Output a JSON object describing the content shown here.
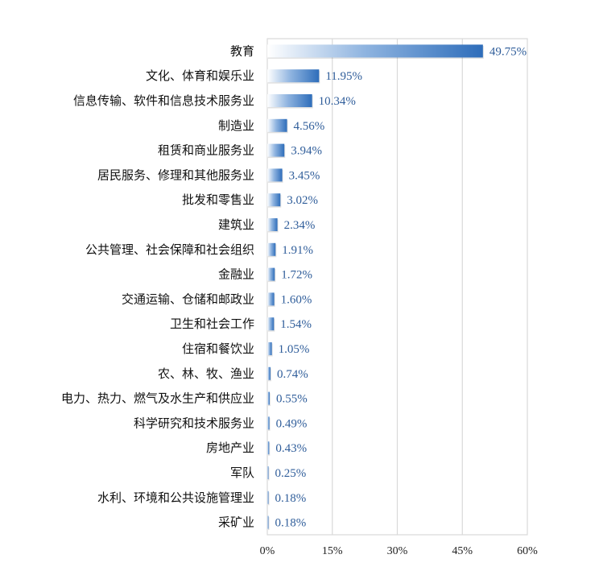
{
  "chart_data": {
    "type": "bar",
    "orientation": "horizontal",
    "categories": [
      "教育",
      "文化、体育和娱乐业",
      "信息传输、软件和信息技术服务业",
      "制造业",
      "租赁和商业服务业",
      "居民服务、修理和其他服务业",
      "批发和零售业",
      "建筑业",
      "公共管理、社会保障和社会组织",
      "金融业",
      "交通运输、仓储和邮政业",
      "卫生和社会工作",
      "住宿和餐饮业",
      "农、林、牧、渔业",
      "电力、热力、燃气及水生产和供应业",
      "科学研究和技术服务业",
      "房地产业",
      "军队",
      "水利、环境和公共设施管理业",
      "采矿业"
    ],
    "values": [
      49.75,
      11.95,
      10.34,
      4.56,
      3.94,
      3.45,
      3.02,
      2.34,
      1.91,
      1.72,
      1.6,
      1.54,
      1.05,
      0.74,
      0.55,
      0.49,
      0.43,
      0.25,
      0.18,
      0.18
    ],
    "data_labels": [
      "49.75%",
      "11.95%",
      "10.34%",
      "4.56%",
      "3.94%",
      "3.45%",
      "3.02%",
      "2.34%",
      "1.91%",
      "1.72%",
      "1.60%",
      "1.54%",
      "1.05%",
      "0.74%",
      "0.55%",
      "0.49%",
      "0.43%",
      "0.25%",
      "0.18%",
      "0.18%"
    ],
    "xlim": [
      0,
      60
    ],
    "x_ticks": [
      "0%",
      "15%",
      "30%",
      "45%",
      "60%"
    ],
    "grid": "vertical",
    "title": "",
    "xlabel": "",
    "ylabel": "",
    "colors": {
      "bar_start": "#ffffff",
      "bar_end": "#2e6dba",
      "label": "#2f5d9a",
      "grid": "#d9d9d9"
    }
  }
}
